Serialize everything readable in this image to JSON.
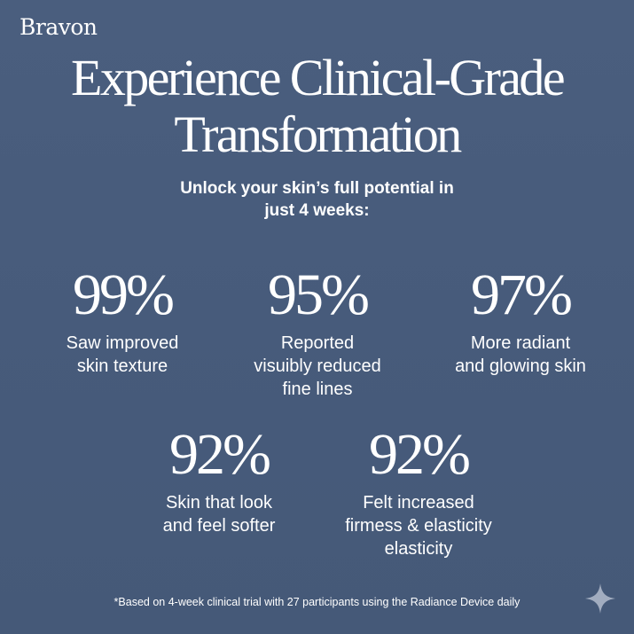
{
  "brand": "Bravon",
  "headline": {
    "line1": "Experience Clinical-Grade",
    "line2": "Transformation"
  },
  "subheadline": {
    "line1": "Unlock your skin’s full potential in",
    "line2": "just 4 weeks:"
  },
  "stats": [
    {
      "value": "99%",
      "label_lines": [
        "Saw improved",
        "skin texture"
      ]
    },
    {
      "value": "95%",
      "label_lines": [
        "Reported",
        "visuibly reduced",
        "fine lines"
      ]
    },
    {
      "value": "97%",
      "label_lines": [
        "More radiant",
        "and glowing skin"
      ]
    },
    {
      "value": "92%",
      "label_lines": [
        "Skin that look",
        "and feel softer"
      ]
    },
    {
      "value": "92%",
      "label_lines": [
        "Felt increased",
        "firmess & elasticity",
        "elasticity"
      ]
    }
  ],
  "footnote": "*Based on 4-week clinical trial with 27 participants using the Radiance Device daily",
  "icons": {
    "corner": "sparkle-icon"
  },
  "colors": {
    "background": "#485c7c",
    "text": "#ffffff"
  }
}
